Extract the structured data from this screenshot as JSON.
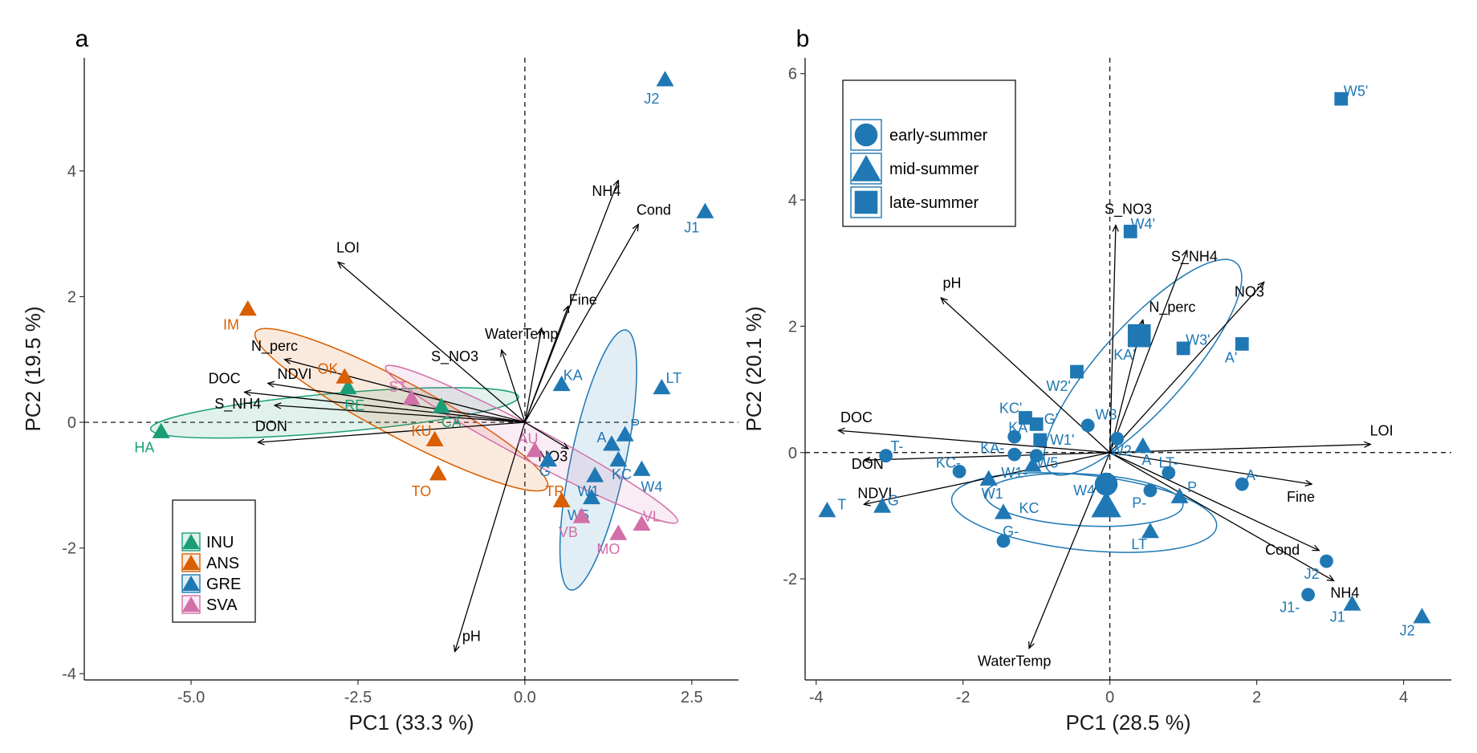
{
  "chart_data": [
    {
      "panel_letter": "a",
      "type": "scatter",
      "xlabel": "PC1 (33.3 %)",
      "ylabel": "PC2 (19.5 %)",
      "xlim": [
        -6.6,
        3.2
      ],
      "ylim": [
        -4.1,
        5.8
      ],
      "xticks": [
        -5.0,
        -2.5,
        0.0,
        2.5
      ],
      "xtick_labels": [
        "-5.0",
        "-2.5",
        "0.0",
        "2.5"
      ],
      "yticks": [
        -4,
        -2,
        0,
        2,
        4
      ],
      "ytick_labels": [
        "-4",
        "-2",
        "0",
        "2",
        "4"
      ],
      "reference_lines": {
        "x": 0,
        "y": 0,
        "style": "dashed"
      },
      "colors": {
        "INU": "#1b9e77",
        "ANS": "#d95f02",
        "GRE": "#1f78b4",
        "SVA": "#d16fa8"
      },
      "vectors": [
        {
          "label": "NH4",
          "x": 1.4,
          "y": 3.85,
          "lx": 1.22,
          "ly": 3.6
        },
        {
          "label": "Cond",
          "x": 1.7,
          "y": 3.15,
          "lx": 1.93,
          "ly": 3.3
        },
        {
          "label": "LOI",
          "x": -2.8,
          "y": 2.55,
          "lx": -2.65,
          "ly": 2.7
        },
        {
          "label": "Fine",
          "x": 0.65,
          "y": 1.85,
          "lx": 0.87,
          "ly": 1.87
        },
        {
          "label": "WaterTemp",
          "x": 0.25,
          "y": 1.5,
          "lx": -0.05,
          "ly": 1.33
        },
        {
          "label": "S_NO3",
          "x": -0.35,
          "y": 1.15,
          "lx": -1.05,
          "ly": 0.97
        },
        {
          "label": "N_perc",
          "x": -3.6,
          "y": 1.0,
          "lx": -3.75,
          "ly": 1.14
        },
        {
          "label": "NDVI",
          "x": -3.85,
          "y": 0.62,
          "lx": -3.45,
          "ly": 0.69
        },
        {
          "label": "DOC",
          "x": -4.2,
          "y": 0.48,
          "lx": -4.5,
          "ly": 0.62
        },
        {
          "label": "S_NH4",
          "x": -3.75,
          "y": 0.27,
          "lx": -4.3,
          "ly": 0.22
        },
        {
          "label": "DON",
          "x": -4.0,
          "y": -0.32,
          "lx": -3.8,
          "ly": -0.14
        },
        {
          "label": "NO3",
          "x": 0.65,
          "y": -0.42,
          "lx": 0.42,
          "ly": -0.62
        },
        {
          "label": "pH",
          "x": -1.05,
          "y": -3.65,
          "lx": -0.8,
          "ly": -3.48
        }
      ],
      "points": [
        {
          "label": "J2",
          "group": "GRE",
          "x": 2.1,
          "y": 5.45,
          "lx": 1.9,
          "ly": 5.15
        },
        {
          "label": "J1",
          "group": "GRE",
          "x": 2.7,
          "y": 3.35,
          "lx": 2.5,
          "ly": 3.1
        },
        {
          "label": "KA",
          "group": "GRE",
          "x": 0.55,
          "y": 0.6,
          "lx": 0.72,
          "ly": 0.75
        },
        {
          "label": "LT",
          "group": "GRE",
          "x": 2.05,
          "y": 0.55,
          "lx": 2.23,
          "ly": 0.7
        },
        {
          "label": "P",
          "group": "GRE",
          "x": 1.5,
          "y": -0.2,
          "lx": 1.65,
          "ly": -0.04
        },
        {
          "label": "A",
          "group": "GRE",
          "x": 1.3,
          "y": -0.35,
          "lx": 1.15,
          "ly": -0.24
        },
        {
          "label": "KC",
          "group": "GRE",
          "x": 1.4,
          "y": -0.6,
          "lx": 1.45,
          "ly": -0.83
        },
        {
          "label": "W4",
          "group": "GRE",
          "x": 1.75,
          "y": -0.75,
          "lx": 1.9,
          "ly": -1.03
        },
        {
          "label": "W1",
          "group": "GRE",
          "x": 1.05,
          "y": -0.85,
          "lx": 0.95,
          "ly": -1.1
        },
        {
          "label": "W5",
          "group": "GRE",
          "x": 1.0,
          "y": -1.2,
          "lx": 0.8,
          "ly": -1.48
        },
        {
          "label": "G",
          "group": "GRE",
          "x": 0.35,
          "y": -0.6,
          "lx": 0.3,
          "ly": -0.78
        },
        {
          "label": "HA",
          "group": "INU",
          "x": -5.45,
          "y": -0.15,
          "lx": -5.7,
          "ly": -0.4
        },
        {
          "label": "RE",
          "group": "INU",
          "x": -2.65,
          "y": 0.55,
          "lx": -2.55,
          "ly": 0.27
        },
        {
          "label": "CA",
          "group": "INU",
          "x": -1.25,
          "y": 0.25,
          "lx": -1.1,
          "ly": 0.0
        },
        {
          "label": "IM",
          "group": "ANS",
          "x": -4.15,
          "y": 1.8,
          "lx": -4.4,
          "ly": 1.55
        },
        {
          "label": "OK",
          "group": "ANS",
          "x": -2.7,
          "y": 0.72,
          "lx": -2.95,
          "ly": 0.85
        },
        {
          "label": "KU",
          "group": "ANS",
          "x": -1.35,
          "y": -0.28,
          "lx": -1.55,
          "ly": -0.14
        },
        {
          "label": "TO",
          "group": "ANS",
          "x": -1.3,
          "y": -0.82,
          "lx": -1.55,
          "ly": -1.1
        },
        {
          "label": "TR",
          "group": "ANS",
          "x": 0.55,
          "y": -1.25,
          "lx": 0.45,
          "ly": -1.1
        },
        {
          "label": "ST",
          "group": "SVA",
          "x": -1.7,
          "y": 0.38,
          "lx": -1.9,
          "ly": 0.56
        },
        {
          "label": "AU",
          "group": "SVA",
          "x": 0.15,
          "y": -0.45,
          "lx": 0.05,
          "ly": -0.26
        },
        {
          "label": "VB",
          "group": "SVA",
          "x": 0.85,
          "y": -1.5,
          "lx": 0.65,
          "ly": -1.75
        },
        {
          "label": "MO",
          "group": "SVA",
          "x": 1.4,
          "y": -1.77,
          "lx": 1.25,
          "ly": -2.02
        },
        {
          "label": "VL",
          "group": "SVA",
          "x": 1.75,
          "y": -1.62,
          "lx": 1.9,
          "ly": -1.5
        }
      ],
      "ellipses": [
        {
          "group": "INU",
          "cx": -2.85,
          "cy": 0.15,
          "rx": 2.85,
          "ry": 0.3,
          "angle": 5
        },
        {
          "group": "ANS",
          "cx": -1.85,
          "cy": 0.2,
          "rx": 2.55,
          "ry": 0.42,
          "angle": -28
        },
        {
          "group": "GRE",
          "cx": 1.1,
          "cy": -0.6,
          "rx": 2.05,
          "ry": 0.42,
          "angle": 78
        },
        {
          "group": "SVA",
          "cx": 0.1,
          "cy": -0.35,
          "rx": 2.55,
          "ry": 0.25,
          "angle": -28
        }
      ],
      "legend": {
        "placement": "bottom-left",
        "entries": [
          {
            "label": "INU",
            "group": "INU"
          },
          {
            "label": "ANS",
            "group": "ANS"
          },
          {
            "label": "GRE",
            "group": "GRE"
          },
          {
            "label": "SVA",
            "group": "SVA"
          }
        ]
      },
      "grid": false
    },
    {
      "panel_letter": "b",
      "type": "scatter",
      "xlabel": "PC1 (28.5 %)",
      "ylabel": "PC2 (20.1 %)",
      "xlim": [
        -4.15,
        4.65
      ],
      "ylim": [
        -3.6,
        6.25
      ],
      "xticks": [
        -4,
        -2,
        0,
        2,
        4
      ],
      "xtick_labels": [
        "-4",
        "-2",
        "0",
        "2",
        "4"
      ],
      "yticks": [
        -2,
        0,
        2,
        4,
        6
      ],
      "ytick_labels": [
        "-2",
        "0",
        "2",
        "4",
        "6"
      ],
      "reference_lines": {
        "x": 0,
        "y": 0,
        "style": "dashed"
      },
      "point_color": "#1f78b4",
      "vectors": [
        {
          "label": "S_NO3",
          "x": 0.08,
          "y": 3.6,
          "lx": 0.25,
          "ly": 3.78
        },
        {
          "label": "S_NH4",
          "x": 1.05,
          "y": 3.2,
          "lx": 1.15,
          "ly": 3.03
        },
        {
          "label": "NO3",
          "x": 2.1,
          "y": 2.7,
          "lx": 1.9,
          "ly": 2.47
        },
        {
          "label": "pH",
          "x": -2.3,
          "y": 2.45,
          "lx": -2.15,
          "ly": 2.61
        },
        {
          "label": "N_perc",
          "x": 0.45,
          "y": 2.1,
          "lx": 0.85,
          "ly": 2.23
        },
        {
          "label": "DOC",
          "x": -3.7,
          "y": 0.35,
          "lx": -3.45,
          "ly": 0.48
        },
        {
          "label": "LOI",
          "x": 3.55,
          "y": 0.13,
          "lx": 3.7,
          "ly": 0.27
        },
        {
          "label": "DON",
          "x": -3.35,
          "y": -0.12,
          "lx": -3.3,
          "ly": -0.26
        },
        {
          "label": "NDVI",
          "x": -3.35,
          "y": -0.82,
          "lx": -3.2,
          "ly": -0.72
        },
        {
          "label": "Fine",
          "x": 2.75,
          "y": -0.5,
          "lx": 2.6,
          "ly": -0.78
        },
        {
          "label": "Cond",
          "x": 2.85,
          "y": -1.55,
          "lx": 2.35,
          "ly": -1.62
        },
        {
          "label": "NH4",
          "x": 3.05,
          "y": -2.03,
          "lx": 3.2,
          "ly": -2.3
        },
        {
          "label": "WaterTemp",
          "x": -1.1,
          "y": -3.1,
          "lx": -1.3,
          "ly": -3.38
        }
      ],
      "points": [
        {
          "label": "W5'",
          "season": "late-summer",
          "x": 3.15,
          "y": 5.6,
          "lx": 3.35,
          "ly": 5.72
        },
        {
          "label": "W4'",
          "season": "late-summer",
          "x": 0.28,
          "y": 3.5,
          "lx": 0.45,
          "ly": 3.62
        },
        {
          "label": "W3'",
          "season": "late-summer",
          "x": 1.0,
          "y": 1.65,
          "lx": 1.2,
          "ly": 1.78
        },
        {
          "label": "A'",
          "season": "late-summer",
          "x": 1.8,
          "y": 1.72,
          "lx": 1.65,
          "ly": 1.5
        },
        {
          "label": "W2'",
          "season": "late-summer",
          "x": -0.45,
          "y": 1.28,
          "lx": -0.7,
          "ly": 1.05
        },
        {
          "label": "KA'",
          "season": "late-summer",
          "x": 0.4,
          "y": 1.85,
          "lx": 0.2,
          "ly": 1.55,
          "big": true
        },
        {
          "label": "KC'",
          "season": "late-summer",
          "x": -1.15,
          "y": 0.55,
          "lx": -1.35,
          "ly": 0.7
        },
        {
          "label": "G'",
          "season": "late-summer",
          "x": -1.0,
          "y": 0.45,
          "lx": -0.8,
          "ly": 0.53
        },
        {
          "label": "W1'",
          "season": "late-summer",
          "x": -0.95,
          "y": 0.2,
          "lx": -0.65,
          "ly": 0.2
        },
        {
          "label": "KA",
          "season": "early-summer",
          "x": -1.3,
          "y": 0.25,
          "lx": -1.25,
          "ly": 0.4
        },
        {
          "label": "W3",
          "season": "early-summer",
          "x": -0.3,
          "y": 0.43,
          "lx": -0.05,
          "ly": 0.6
        },
        {
          "label": "W2",
          "season": "early-summer",
          "x": 0.1,
          "y": 0.22,
          "lx": 0.15,
          "ly": 0.03
        },
        {
          "label": "KA-",
          "season": "early-summer",
          "x": -1.3,
          "y": -0.03,
          "lx": -1.6,
          "ly": 0.07
        },
        {
          "label": "T-",
          "season": "early-summer",
          "x": -3.05,
          "y": -0.05,
          "lx": -2.9,
          "ly": 0.1
        },
        {
          "label": "KC-",
          "season": "early-summer",
          "x": -2.05,
          "y": -0.3,
          "lx": -2.2,
          "ly": -0.16
        },
        {
          "label": "W5",
          "season": "early-summer",
          "x": -1.0,
          "y": -0.05,
          "lx": -0.85,
          "ly": -0.16
        },
        {
          "label": "W4",
          "season": "early-summer",
          "x": -0.05,
          "y": -0.5,
          "lx": -0.35,
          "ly": -0.6,
          "big": true
        },
        {
          "label": "LT-",
          "season": "early-summer",
          "x": 0.8,
          "y": -0.32,
          "lx": 0.8,
          "ly": -0.16
        },
        {
          "label": "A-",
          "season": "early-summer",
          "x": 1.8,
          "y": -0.5,
          "lx": 1.95,
          "ly": -0.36
        },
        {
          "label": "P-",
          "season": "early-summer",
          "x": 0.55,
          "y": -0.6,
          "lx": 0.4,
          "ly": -0.8
        },
        {
          "label": "G-",
          "season": "early-summer",
          "x": -1.45,
          "y": -1.4,
          "lx": -1.35,
          "ly": -1.25
        },
        {
          "label": "J2",
          "season": "early-summer",
          "x": 2.95,
          "y": -1.72,
          "lx": 2.75,
          "ly": -1.92
        },
        {
          "label": "J1-",
          "season": "early-summer",
          "x": 2.7,
          "y": -2.25,
          "lx": 2.45,
          "ly": -2.45
        },
        {
          "label": "A",
          "season": "mid-summer",
          "x": 0.45,
          "y": 0.1,
          "lx": 0.5,
          "ly": -0.12
        },
        {
          "label": "P",
          "season": "mid-summer",
          "x": 0.95,
          "y": -0.7,
          "lx": 1.12,
          "ly": -0.55
        },
        {
          "label": "LT",
          "season": "mid-summer",
          "x": 0.55,
          "y": -1.25,
          "lx": 0.4,
          "ly": -1.45
        },
        {
          "label": "W1",
          "season": "mid-summer",
          "x": -1.65,
          "y": -0.42,
          "lx": -1.6,
          "ly": -0.65
        },
        {
          "label": "W1-",
          "season": "mid-summer",
          "x": -1.05,
          "y": -0.2,
          "lx": -1.3,
          "ly": -0.32
        },
        {
          "label": "KC",
          "season": "mid-summer",
          "x": -1.45,
          "y": -0.95,
          "lx": -1.1,
          "ly": -0.88
        },
        {
          "label": "G",
          "season": "mid-summer",
          "x": -3.1,
          "y": -0.85,
          "lx": -2.95,
          "ly": -0.76
        },
        {
          "label": "T",
          "season": "mid-summer",
          "x": -3.85,
          "y": -0.92,
          "lx": -3.65,
          "ly": -0.82
        },
        {
          "label": "W4-",
          "season": "mid-summer",
          "x": -0.05,
          "y": -0.85,
          "lx": -0.35,
          "ly": -0.6,
          "big": true,
          "hide_label": true
        },
        {
          "label": "J1",
          "season": "mid-summer",
          "x": 3.3,
          "y": -2.4,
          "lx": 3.1,
          "ly": -2.6
        },
        {
          "label": "J2",
          "season": "mid-summer",
          "x": 4.25,
          "y": -2.6,
          "lx": 4.05,
          "ly": -2.82
        }
      ],
      "ellipses": [
        {
          "cx": 0.45,
          "cy": 1.35,
          "rx": 2.05,
          "ry": 0.62,
          "angle": 48
        },
        {
          "cx": -0.35,
          "cy": -0.75,
          "rx": 1.45,
          "ry": 0.38,
          "angle": -3
        },
        {
          "cx": -0.35,
          "cy": -0.95,
          "rx": 1.95,
          "ry": 0.55,
          "angle": -6
        }
      ],
      "legend": {
        "placement": "top-left",
        "entries": [
          {
            "label": "early-summer",
            "shape": "circle"
          },
          {
            "label": "mid-summer",
            "shape": "triangle"
          },
          {
            "label": "late-summer",
            "shape": "square"
          }
        ]
      },
      "grid": false
    }
  ]
}
